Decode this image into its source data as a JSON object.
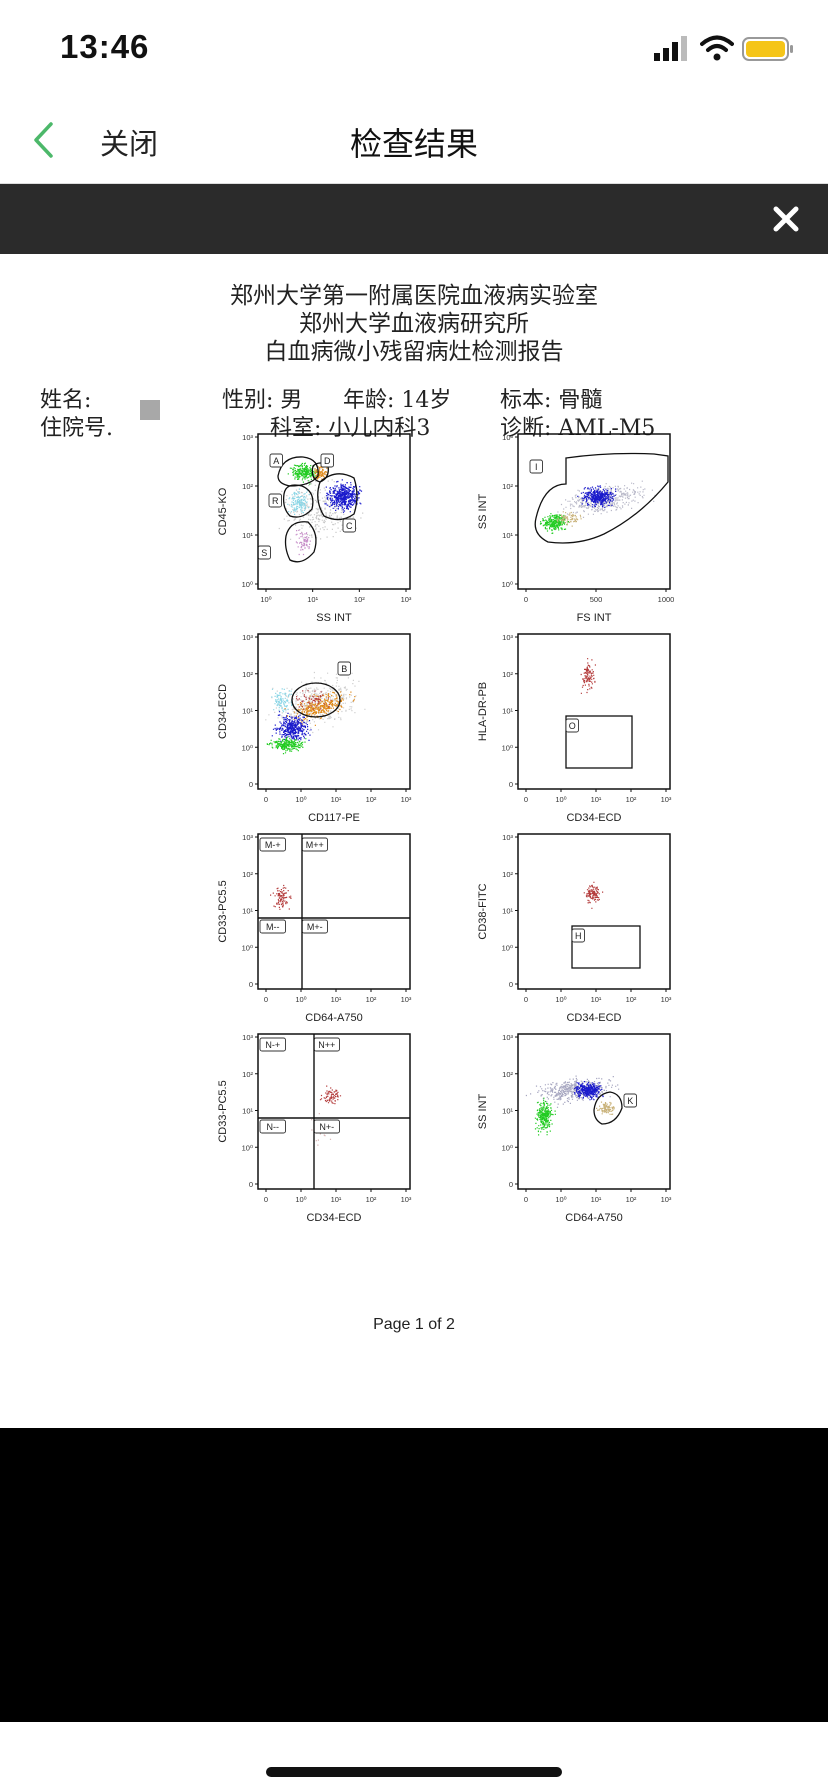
{
  "status": {
    "time": "13:46"
  },
  "nav": {
    "close_label": "关闭",
    "title": "检查结果"
  },
  "report": {
    "title_lines": [
      "郑州大学第一附属医院血液病实验室",
      "郑州大学血液病研究所",
      "白血病微小残留病灶检测报告"
    ],
    "fields": {
      "name": "姓名:",
      "gender": "性别: 男",
      "age": "年龄: 14岁",
      "specimen": "标本: 骨髓",
      "inpatient_no": "住院号.",
      "department": "科室: 小儿内科3",
      "diagnosis": "诊断: AML-M5"
    },
    "page_label": "Page 1 of 2"
  },
  "plots": [
    {
      "kind": "log",
      "xlabel": "SS INT",
      "ylabel": "CD45-KO",
      "xticks": [
        "10⁰",
        "10¹",
        "10²",
        "10³"
      ],
      "yticks": [
        "10³",
        "10²",
        "10¹",
        "10⁰"
      ],
      "gates": [
        "A",
        "D",
        "R",
        "C",
        "S"
      ]
    },
    {
      "kind": "lin",
      "xlabel": "FS INT",
      "ylabel": "SS INT",
      "xticks": [
        "0",
        "500",
        "1000"
      ],
      "yticks": [
        "10³",
        "10²",
        "10¹",
        "10⁰"
      ],
      "gates": [
        "I"
      ]
    },
    {
      "kind": "log",
      "xlabel": "CD117-PE",
      "ylabel": "CD34-ECD",
      "xticks": [
        "0",
        "10⁰",
        "10¹",
        "10²",
        "10³"
      ],
      "yticks": [
        "10³",
        "10²",
        "10¹",
        "10⁰",
        "0"
      ],
      "gates": [
        "B"
      ]
    },
    {
      "kind": "log",
      "xlabel": "CD34-ECD",
      "ylabel": "HLA-DR-PB",
      "xticks": [
        "0",
        "10⁰",
        "10¹",
        "10²",
        "10³"
      ],
      "yticks": [
        "10³",
        "10²",
        "10¹",
        "10⁰",
        "0"
      ],
      "gates": [
        "O"
      ]
    },
    {
      "kind": "quad",
      "xlabel": "CD64-A750",
      "ylabel": "CD33-PC5.5",
      "xticks": [
        "0",
        "10⁰",
        "10¹",
        "10²",
        "10³"
      ],
      "yticks": [
        "10³",
        "10²",
        "10¹",
        "10⁰",
        "0"
      ],
      "gates": [
        "M-+",
        "M++",
        "M--",
        "M+-"
      ]
    },
    {
      "kind": "log",
      "xlabel": "CD34-ECD",
      "ylabel": "CD38-FITC",
      "xticks": [
        "0",
        "10⁰",
        "10¹",
        "10²",
        "10³"
      ],
      "yticks": [
        "10³",
        "10²",
        "10¹",
        "10⁰",
        "0"
      ],
      "gates": [
        "H"
      ]
    },
    {
      "kind": "quad",
      "xlabel": "CD34-ECD",
      "ylabel": "CD33-PC5.5",
      "xticks": [
        "0",
        "10⁰",
        "10¹",
        "10²",
        "10³"
      ],
      "yticks": [
        "10³",
        "10²",
        "10¹",
        "10⁰",
        "0"
      ],
      "gates": [
        "N-+",
        "N++",
        "N--",
        "N+-"
      ]
    },
    {
      "kind": "log",
      "xlabel": "CD64-A750",
      "ylabel": "SS INT",
      "xticks": [
        "0",
        "10⁰",
        "10¹",
        "10²",
        "10³"
      ],
      "yticks": [
        "10³",
        "10²",
        "10¹",
        "10⁰",
        "0"
      ],
      "gates": [
        "K"
      ]
    }
  ],
  "colors": {
    "viewer_bar": "#2b2b2b",
    "back_chevron": "#4cb86a",
    "battery": "#f5c518",
    "population_green": "#22cc22",
    "population_blue": "#1a1acc",
    "population_orange": "#e08a1a",
    "population_cyan": "#8cd6e6",
    "population_pink": "#c78fc9",
    "population_red": "#b43c3c",
    "population_tan": "#c9b27a"
  }
}
